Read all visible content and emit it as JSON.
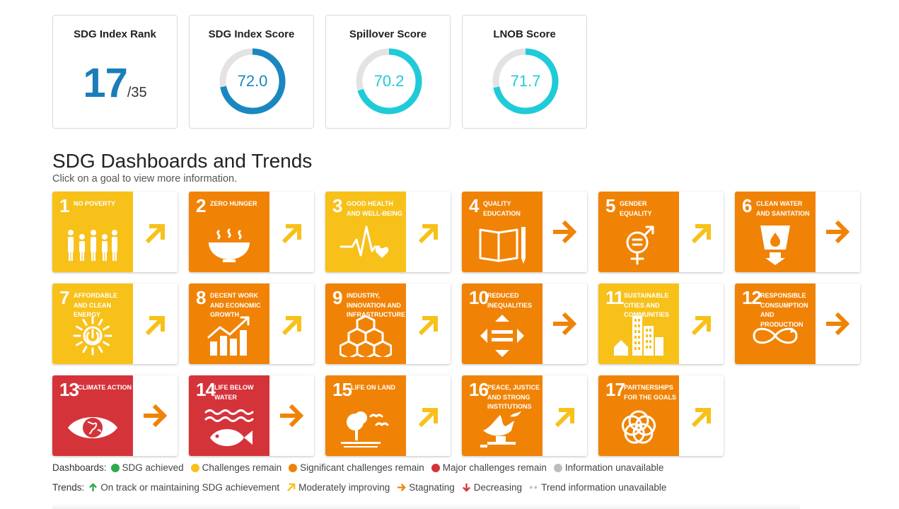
{
  "kpis": {
    "rank": {
      "title": "SDG Index Rank",
      "value": "17",
      "total": "/35"
    },
    "index_score": {
      "title": "SDG Index Score",
      "value": "72.0",
      "fraction": 0.72,
      "color": "#1a87c1"
    },
    "spillover": {
      "title": "Spillover Score",
      "value": "70.2",
      "fraction": 0.702,
      "color": "#1fcbd9"
    },
    "lnob": {
      "title": "LNOB Score",
      "value": "71.7",
      "fraction": 0.717,
      "color": "#1fcbd9"
    }
  },
  "section": {
    "title": "SDG Dashboards and Trends",
    "subtitle": "Click on a goal to view more information."
  },
  "goals": [
    {
      "number": "1",
      "name": "No Poverty",
      "color": "#f7c11a",
      "icon": "people-icon",
      "trend": "moderately-improving"
    },
    {
      "number": "2",
      "name": "Zero Hunger",
      "color": "#f08306",
      "icon": "bowl-icon",
      "trend": "moderately-improving"
    },
    {
      "number": "3",
      "name": "Good Health and Well-Being",
      "color": "#f7c11a",
      "icon": "heartbeat-icon",
      "trend": "moderately-improving"
    },
    {
      "number": "4",
      "name": "Quality Education",
      "color": "#f08306",
      "icon": "book-icon",
      "trend": "stagnating"
    },
    {
      "number": "5",
      "name": "Gender Equality",
      "color": "#f08306",
      "icon": "gender-icon",
      "trend": "moderately-improving"
    },
    {
      "number": "6",
      "name": "Clean Water and Sanitation",
      "color": "#f08306",
      "icon": "water-glass-icon",
      "trend": "stagnating"
    },
    {
      "number": "7",
      "name": "Affordable and Clean Energy",
      "color": "#f7c11a",
      "icon": "sun-power-icon",
      "trend": "moderately-improving"
    },
    {
      "number": "8",
      "name": "Decent Work and Economic Growth",
      "color": "#f08306",
      "icon": "growth-chart-icon",
      "trend": "moderately-improving"
    },
    {
      "number": "9",
      "name": "Industry, Innovation and Infrastructure",
      "color": "#f08306",
      "icon": "cubes-icon",
      "trend": "moderately-improving"
    },
    {
      "number": "10",
      "name": "Reduced Inequalities",
      "color": "#f08306",
      "icon": "equal-arrows-icon",
      "trend": "stagnating"
    },
    {
      "number": "11",
      "name": "Sustainable Cities and Communities",
      "color": "#f7c11a",
      "icon": "city-icon",
      "trend": "moderately-improving"
    },
    {
      "number": "12",
      "name": "Responsible Consumption and Production",
      "color": "#f08306",
      "icon": "infinity-icon",
      "trend": "stagnating"
    },
    {
      "number": "13",
      "name": "Climate Action",
      "color": "#d5333a",
      "icon": "eye-globe-icon",
      "trend": "stagnating"
    },
    {
      "number": "14",
      "name": "Life Below Water",
      "color": "#d5333a",
      "icon": "fish-icon",
      "trend": "stagnating"
    },
    {
      "number": "15",
      "name": "Life on Land",
      "color": "#f08306",
      "icon": "tree-birds-icon",
      "trend": "moderately-improving"
    },
    {
      "number": "16",
      "name": "Peace, Justice and Strong Institutions",
      "color": "#f08306",
      "icon": "dove-icon",
      "trend": "moderately-improving"
    },
    {
      "number": "17",
      "name": "Partnerships for the Goals",
      "color": "#f08306",
      "icon": "rings-icon",
      "trend": "moderately-improving"
    }
  ],
  "legend": {
    "dashboards_label": "Dashboards:",
    "dashboards": [
      {
        "label": "SDG achieved",
        "color": "#2bab4c"
      },
      {
        "label": "Challenges remain",
        "color": "#f7c11a"
      },
      {
        "label": "Significant challenges remain",
        "color": "#f08306"
      },
      {
        "label": "Major challenges remain",
        "color": "#d5333a"
      },
      {
        "label": "Information unavailable",
        "color": "#bdbdbd"
      }
    ],
    "trends_label": "Trends:",
    "trends": [
      {
        "label": "On track or maintaining SDG achievement",
        "icon": "arrow-up-icon",
        "color": "#2bab4c"
      },
      {
        "label": "Moderately improving",
        "icon": "arrow-up-right-icon",
        "color": "#f7c11a"
      },
      {
        "label": "Stagnating",
        "icon": "arrow-right-icon",
        "color": "#f08306"
      },
      {
        "label": "Decreasing",
        "icon": "arrow-down-icon",
        "color": "#d5333a"
      },
      {
        "label": "Trend information unavailable",
        "icon": "dots-icon",
        "color": "#bdbdbd"
      }
    ]
  }
}
